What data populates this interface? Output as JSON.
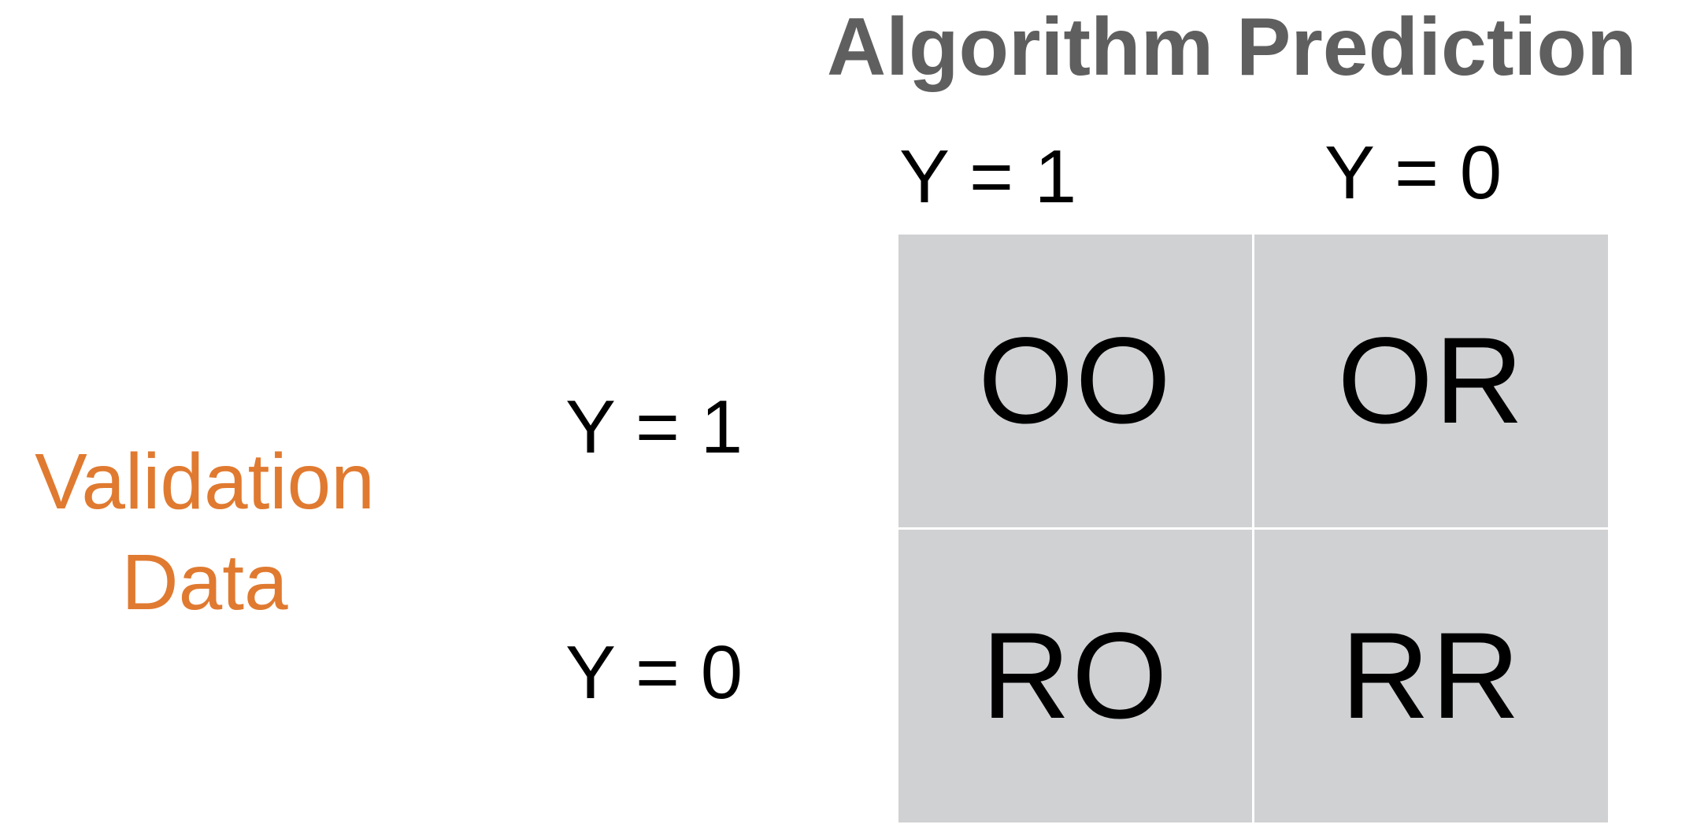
{
  "title": "Algorithm Prediction",
  "columns": [
    "Y = 1",
    "Y = 0"
  ],
  "rows": [
    "Y = 1",
    "Y = 0"
  ],
  "side_label": [
    "Validation",
    "Data"
  ],
  "cells": [
    [
      "OO",
      "OR"
    ],
    [
      "RO",
      "RR"
    ]
  ],
  "colors": {
    "title": "#5f5f5f",
    "side_label": "#e07a30",
    "cell_fill": "#d0d1d3"
  }
}
